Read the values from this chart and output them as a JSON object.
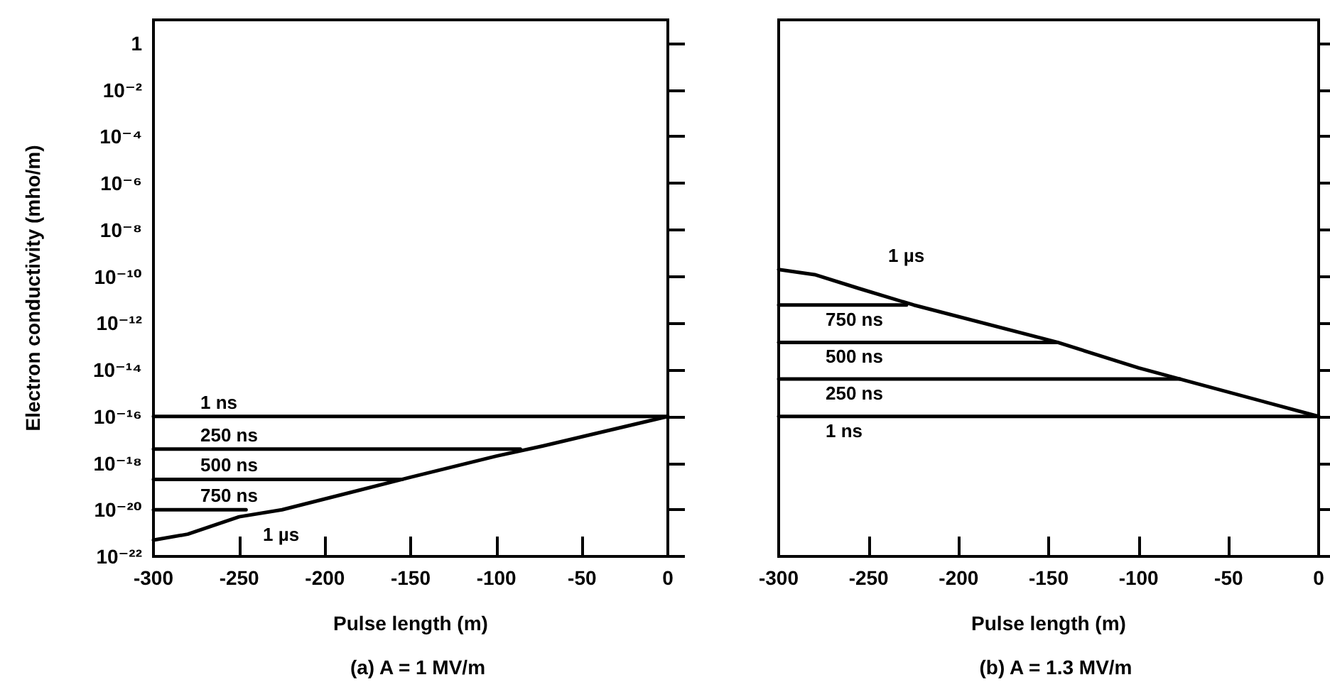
{
  "chart_data": [
    {
      "type": "line",
      "title": "(a) A = 1 MV/m",
      "xlabel": "Pulse length (m)",
      "ylabel": "Electron conductivity (mho/m)",
      "xlim": [
        -300,
        0
      ],
      "xticks": [
        -300,
        -250,
        -200,
        -150,
        -100,
        -50,
        0
      ],
      "ylim": [
        1e-22,
        10
      ],
      "yticks": [
        {
          "value": 1,
          "label": "1"
        },
        {
          "value": 0.01,
          "label": "10⁻²"
        },
        {
          "value": 0.0001,
          "label": "10⁻⁴"
        },
        {
          "value": 1e-06,
          "label": "10⁻⁶"
        },
        {
          "value": 1e-08,
          "label": "10⁻⁸"
        },
        {
          "value": 1e-10,
          "label": "10⁻¹⁰"
        },
        {
          "value": 1e-12,
          "label": "10⁻¹²"
        },
        {
          "value": 1e-14,
          "label": "10⁻¹⁴"
        },
        {
          "value": 1e-16,
          "label": "10⁻¹⁶"
        },
        {
          "value": 1e-18,
          "label": "10⁻¹⁸"
        },
        {
          "value": 1e-20,
          "label": "10⁻²⁰"
        },
        {
          "value": 1e-22,
          "label": "10⁻²²"
        }
      ],
      "log": "y",
      "grid": false,
      "marker": "none",
      "line_style": "solid",
      "series": [
        {
          "name": "1 ns",
          "color": "#000000",
          "x": [
            -300,
            0
          ],
          "values": [
            1e-16,
            1e-16
          ]
        },
        {
          "name": "250 ns",
          "color": "#000000",
          "x": [
            -300,
            -86
          ],
          "values": [
            4e-18,
            4e-18
          ]
        },
        {
          "name": "500 ns",
          "color": "#000000",
          "x": [
            -300,
            -155
          ],
          "values": [
            2e-19,
            2e-19
          ]
        },
        {
          "name": "750 ns",
          "color": "#000000",
          "x": [
            -300,
            -246
          ],
          "values": [
            1e-20,
            1e-20
          ]
        },
        {
          "name": "1 µs",
          "color": "#000000",
          "x": [
            -300,
            -280,
            -250,
            -225,
            -150,
            -100,
            -75,
            0
          ],
          "values": [
            5e-22,
            9e-22,
            5e-21,
            1e-20,
            2.5e-19,
            2e-18,
            5e-18,
            1e-16
          ]
        }
      ]
    },
    {
      "type": "line",
      "title": "(b) A = 1.3 MV/m",
      "xlabel": "Pulse length (m)",
      "xlim": [
        -300,
        0
      ],
      "xticks": [
        -300,
        -250,
        -200,
        -150,
        -100,
        -50,
        0
      ],
      "ylim": [
        1e-22,
        10
      ],
      "yticks": [
        1,
        0.01,
        0.0001,
        1e-06,
        1e-08,
        1e-10,
        1e-12,
        1e-14,
        1e-16,
        1e-18,
        1e-20,
        1e-22
      ],
      "tick_labels": "x",
      "log": "y",
      "grid": false,
      "marker": "none",
      "line_style": "solid",
      "series": [
        {
          "name": "1 ns",
          "color": "#000000",
          "x": [
            -300,
            0
          ],
          "values": [
            1e-16,
            1e-16
          ]
        },
        {
          "name": "250 ns",
          "color": "#000000",
          "x": [
            -300,
            -77
          ],
          "values": [
            4e-15,
            4e-15
          ]
        },
        {
          "name": "500 ns",
          "color": "#000000",
          "x": [
            -300,
            -145
          ],
          "values": [
            1.5e-13,
            1.5e-13
          ]
        },
        {
          "name": "750 ns",
          "color": "#000000",
          "x": [
            -300,
            -229
          ],
          "values": [
            6e-12,
            6e-12
          ]
        },
        {
          "name": "1 µs",
          "color": "#000000",
          "x": [
            -300,
            -280,
            -255,
            -225,
            -145,
            -100,
            -77,
            0
          ],
          "values": [
            2e-10,
            1.2e-10,
            3e-11,
            6e-12,
            1.5e-13,
            1.2e-14,
            4e-15,
            1e-16
          ]
        }
      ]
    }
  ]
}
